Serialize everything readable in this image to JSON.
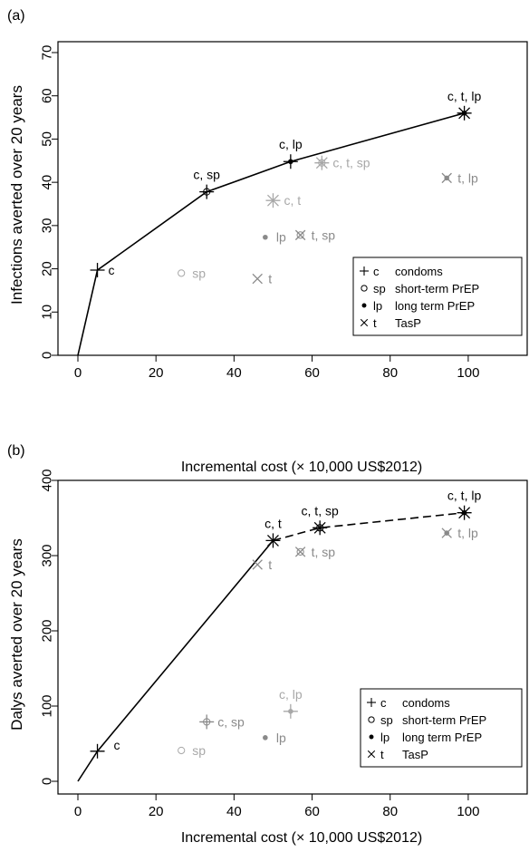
{
  "legend_items": [
    {
      "symbol": "plus",
      "key": "c",
      "label": "condoms"
    },
    {
      "symbol": "circle",
      "key": "sp",
      "label": "short-term PrEP"
    },
    {
      "symbol": "dot",
      "key": "lp",
      "label": "long term PrEP"
    },
    {
      "symbol": "cross",
      "key": "t",
      "label": "TasP"
    }
  ],
  "colors": {
    "frontier": "#000000",
    "dominated": "#8a8a8a",
    "light": "#a8a8a8"
  },
  "chart_data": [
    {
      "panel_label": "(a)",
      "type": "scatter",
      "title": "",
      "xlabel": "",
      "ylabel": "Infections averted over 20 years",
      "xlim": [
        0,
        110
      ],
      "ylim": [
        0,
        70
      ],
      "xticks": [
        0,
        20,
        40,
        60,
        80,
        100
      ],
      "yticks": [
        0,
        10,
        20,
        30,
        40,
        50,
        60,
        70
      ],
      "frontier": [
        {
          "style": "solid",
          "points": [
            [
              0,
              0
            ],
            [
              5,
              19.7
            ],
            [
              33,
              37.8
            ],
            [
              54.5,
              44.8
            ],
            [
              99,
              56
            ]
          ]
        }
      ],
      "points": [
        {
          "label": "c",
          "x": 5,
          "y": 19.7,
          "status": "frontier",
          "label_pos": "right"
        },
        {
          "label": "c, sp",
          "x": 33,
          "y": 37.8,
          "status": "frontier",
          "label_pos": "above"
        },
        {
          "label": "c, lp",
          "x": 54.5,
          "y": 44.8,
          "status": "frontier",
          "label_pos": "above"
        },
        {
          "label": "c, t, lp",
          "x": 99,
          "y": 56,
          "status": "frontier",
          "label_pos": "above"
        },
        {
          "label": "sp",
          "x": 26.5,
          "y": 19,
          "status": "light",
          "label_pos": "right"
        },
        {
          "label": "t",
          "x": 46,
          "y": 17.7,
          "status": "dominated",
          "label_pos": "right"
        },
        {
          "label": "lp",
          "x": 48,
          "y": 27.3,
          "status": "dominated",
          "label_pos": "right"
        },
        {
          "label": "c, t",
          "x": 50,
          "y": 35.8,
          "status": "light",
          "label_pos": "right"
        },
        {
          "label": "t, sp",
          "x": 57,
          "y": 27.8,
          "status": "dominated",
          "label_pos": "right"
        },
        {
          "label": "c, t, sp",
          "x": 62.5,
          "y": 44.5,
          "status": "light",
          "label_pos": "right"
        },
        {
          "label": "t, lp",
          "x": 94.5,
          "y": 41,
          "status": "dominated",
          "label_pos": "right"
        }
      ]
    },
    {
      "panel_label": "(b)",
      "type": "scatter",
      "title": "Incremental cost (× 10,000 US$2012)",
      "xlabel": "Incremental cost (× 10,000 US$2012)",
      "ylabel": "Dalys averted over 20 years",
      "xlim": [
        0,
        110
      ],
      "ylim": [
        0,
        400
      ],
      "xticks": [
        0,
        20,
        40,
        60,
        80,
        100
      ],
      "yticks": [
        0,
        100,
        200,
        300,
        400
      ],
      "frontier": [
        {
          "style": "solid",
          "points": [
            [
              0,
              0
            ],
            [
              5,
              40
            ],
            [
              50,
              320
            ]
          ]
        },
        {
          "style": "dashed",
          "points": [
            [
              50,
              320
            ],
            [
              62,
              337
            ],
            [
              99,
              357
            ]
          ]
        }
      ],
      "points": [
        {
          "label": "c",
          "x": 5,
          "y": 40,
          "status": "frontier",
          "label_pos": "right-up"
        },
        {
          "label": "c, t",
          "x": 50,
          "y": 320,
          "status": "frontier",
          "label_pos": "above"
        },
        {
          "label": "c, t, sp",
          "x": 62,
          "y": 337,
          "status": "frontier",
          "label_pos": "above"
        },
        {
          "label": "c, t, lp",
          "x": 99,
          "y": 357,
          "status": "frontier",
          "label_pos": "above"
        },
        {
          "label": "sp",
          "x": 26.5,
          "y": 41,
          "status": "light",
          "label_pos": "right"
        },
        {
          "label": "c, sp",
          "x": 33,
          "y": 79,
          "status": "dominated",
          "label_pos": "right"
        },
        {
          "label": "lp",
          "x": 48,
          "y": 58,
          "status": "dominated",
          "label_pos": "right"
        },
        {
          "label": "c, lp",
          "x": 54.5,
          "y": 93,
          "status": "light",
          "label_pos": "above"
        },
        {
          "label": "t",
          "x": 46,
          "y": 288,
          "status": "dominated",
          "label_pos": "right"
        },
        {
          "label": "t, sp",
          "x": 57,
          "y": 305,
          "status": "dominated",
          "label_pos": "right"
        },
        {
          "label": "t, lp",
          "x": 94.5,
          "y": 330,
          "status": "dominated",
          "label_pos": "right"
        }
      ]
    }
  ]
}
